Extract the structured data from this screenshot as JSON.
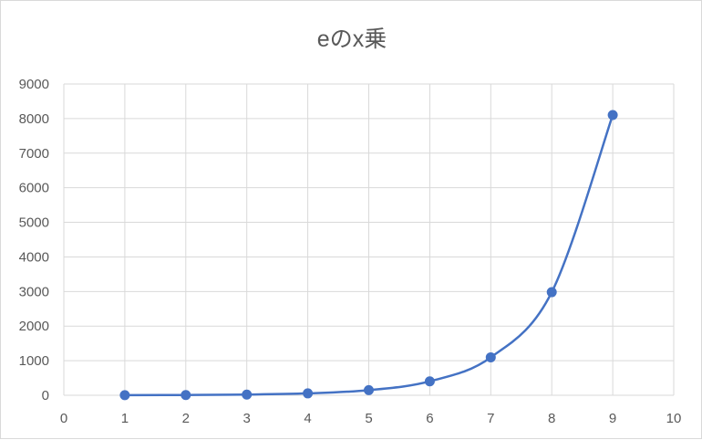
{
  "chart_data": {
    "type": "scatter",
    "title": "eのx乗",
    "xlabel": "",
    "ylabel": "",
    "xlim": [
      0,
      10
    ],
    "ylim": [
      0,
      9000
    ],
    "xticks": [
      "0",
      "1",
      "2",
      "3",
      "4",
      "5",
      "6",
      "7",
      "8",
      "9",
      "10"
    ],
    "yticks": [
      "0",
      "1000",
      "2000",
      "3000",
      "4000",
      "5000",
      "6000",
      "7000",
      "8000",
      "9000"
    ],
    "grid": true,
    "smooth_line": true,
    "markers": true,
    "legend": "none",
    "color": "#4472C4",
    "x": [
      1,
      2,
      3,
      4,
      5,
      6,
      7,
      8,
      9
    ],
    "y": [
      2.718,
      7.389,
      20.09,
      54.6,
      148.4,
      403.4,
      1096.6,
      2981.0,
      8103.1
    ]
  }
}
